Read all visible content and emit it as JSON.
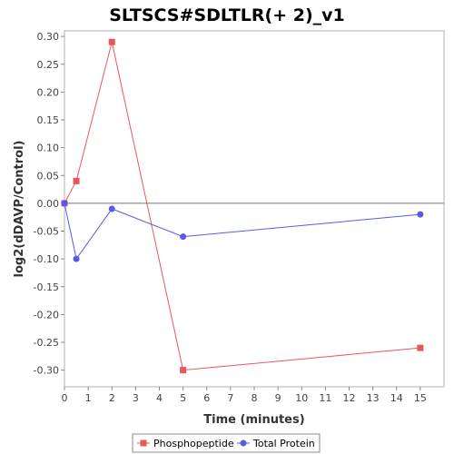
{
  "chart_data": {
    "type": "line",
    "title": "SLTSCS#SDLTLR(+ 2)_v1",
    "xlabel": "Time (minutes)",
    "ylabel": "log2(dDAVP/Control)",
    "xlim": [
      0,
      16
    ],
    "ylim": [
      -0.33,
      0.31
    ],
    "x_ticks": [
      0,
      1,
      2,
      3,
      4,
      5,
      6,
      7,
      8,
      9,
      10,
      11,
      12,
      13,
      14,
      15
    ],
    "y_ticks": [
      0.3,
      0.25,
      0.2,
      0.15,
      0.1,
      0.05,
      0.0,
      -0.05,
      -0.1,
      -0.15,
      -0.2,
      -0.25,
      -0.3
    ],
    "x_tick_labels": [
      "0",
      "1",
      "2",
      "3",
      "4",
      "5",
      "6",
      "7",
      "8",
      "9",
      "10",
      "11",
      "12",
      "13",
      "14",
      "15"
    ],
    "y_tick_labels": [
      "0.30",
      "0.25",
      "0.20",
      "0.15",
      "0.10",
      "0.05",
      "0.00",
      "-0.05",
      "-0.10",
      "-0.15",
      "-0.20",
      "-0.25",
      "-0.30"
    ],
    "grid": false,
    "zero_line": true,
    "legend_position": "bottom",
    "series": [
      {
        "name": "Phosphopeptide",
        "color": "#e8585a",
        "marker": "square",
        "x": [
          0,
          0.5,
          2,
          5,
          15
        ],
        "y": [
          0.0,
          0.04,
          0.29,
          -0.3,
          -0.26
        ]
      },
      {
        "name": "Total Protein",
        "color": "#5a5ae8",
        "marker": "circle",
        "x": [
          0,
          0.5,
          2,
          5,
          15
        ],
        "y": [
          0.0,
          -0.1,
          -0.01,
          -0.06,
          -0.02
        ]
      }
    ]
  }
}
